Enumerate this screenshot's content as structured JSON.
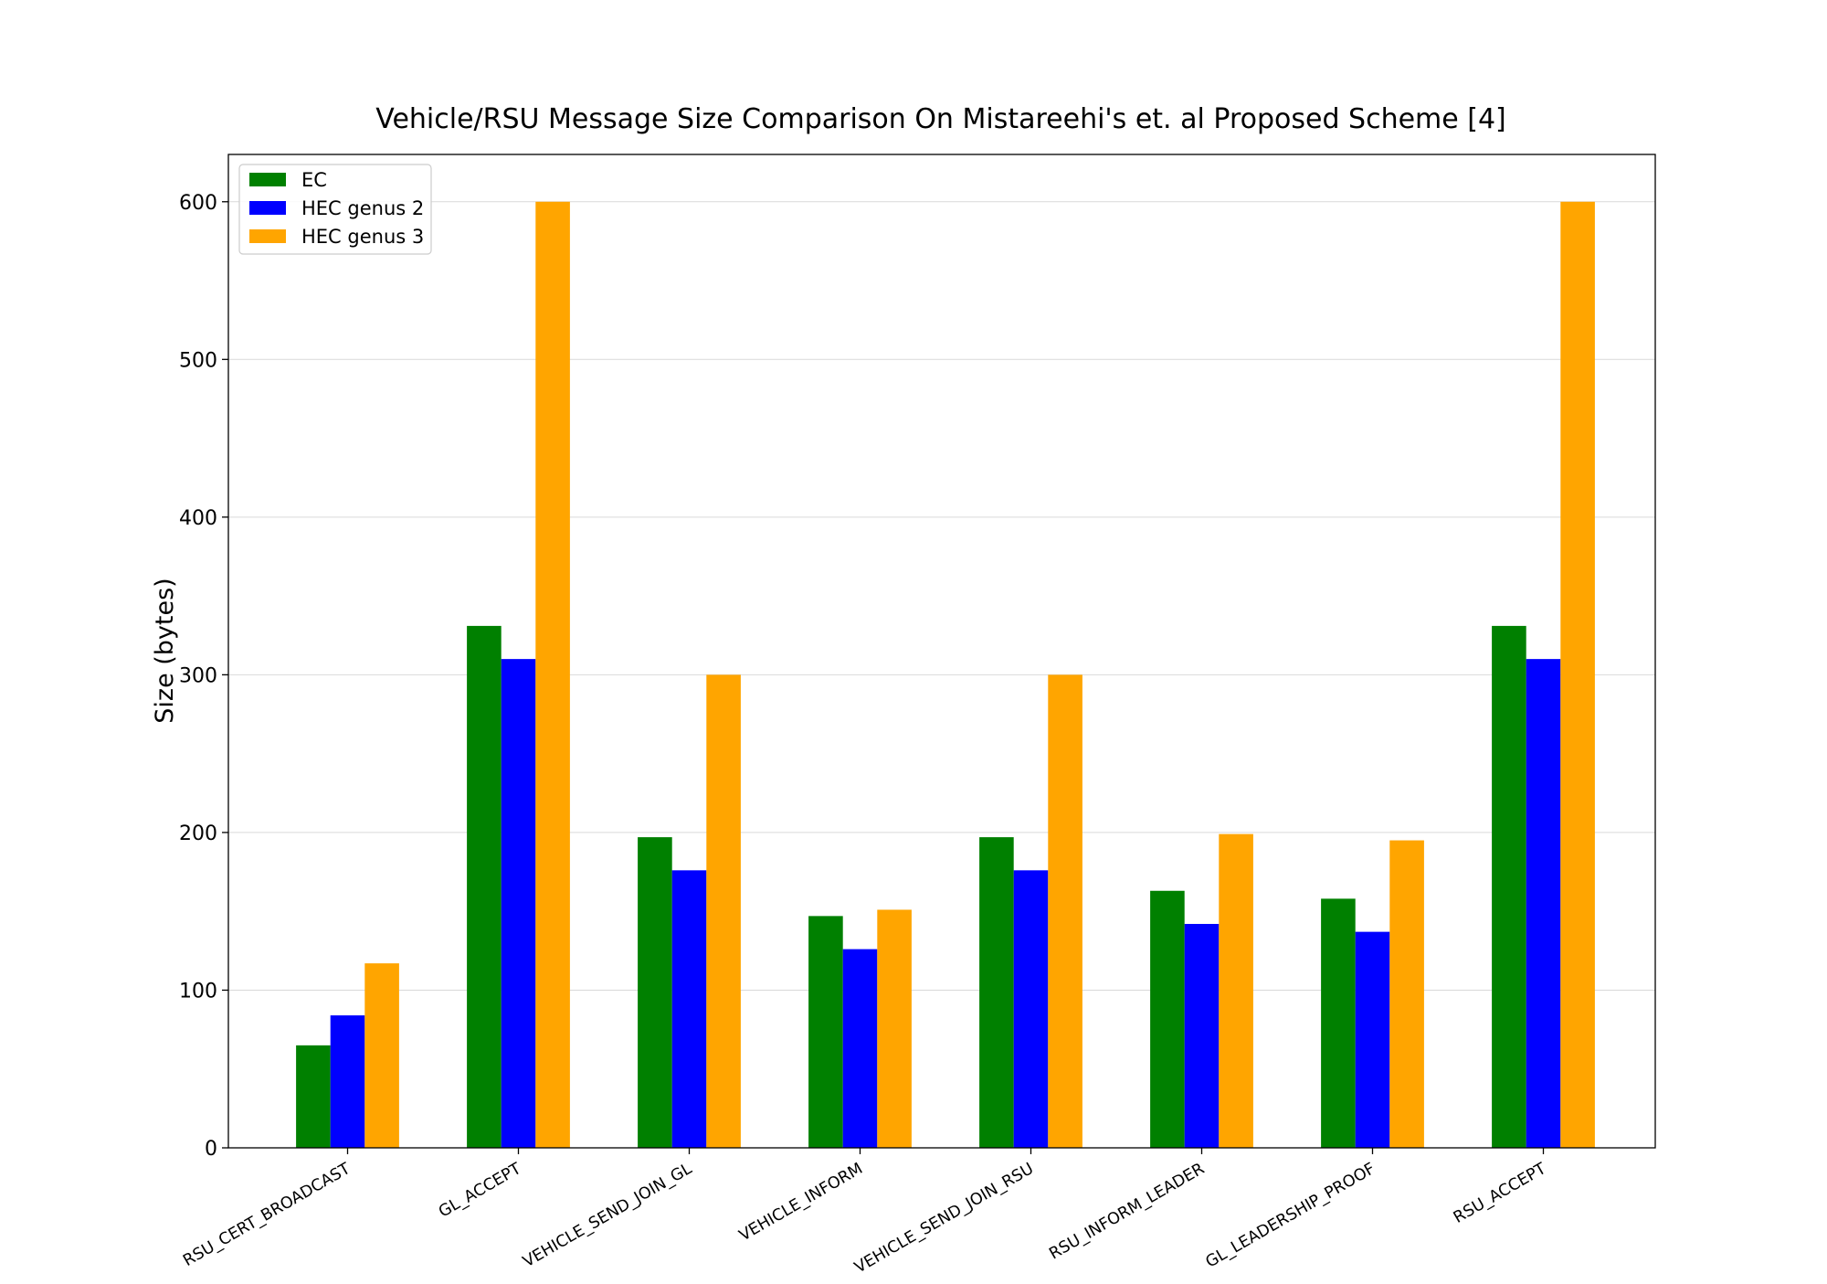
{
  "chart_data": {
    "type": "bar",
    "title": "Vehicle/RSU Message Size Comparison On Mistareehi's et. al Proposed Scheme [4]",
    "xlabel": "",
    "ylabel": "Size (bytes)",
    "ylim": [
      0,
      630
    ],
    "yticks": [
      "0",
      "100",
      "200",
      "300",
      "400",
      "500",
      "600"
    ],
    "grid": "horizontal",
    "legend_position": "top-left",
    "categories": [
      "RSU_CERT_BROADCAST",
      "GL_ACCEPT",
      "VEHICLE_SEND_JOIN_GL",
      "VEHICLE_INFORM",
      "VEHICLE_SEND_JOIN_RSU",
      "RSU_INFORM_LEADER",
      "GL_LEADERSHIP_PROOF",
      "RSU_ACCEPT"
    ],
    "series": [
      {
        "name": "EC",
        "color": "#008000",
        "values": [
          65,
          331,
          197,
          147,
          197,
          163,
          158,
          331
        ]
      },
      {
        "name": "HEC genus 2",
        "color": "#0000ff",
        "values": [
          84,
          310,
          176,
          126,
          176,
          142,
          137,
          310
        ]
      },
      {
        "name": "HEC genus 3",
        "color": "#ffa500",
        "values": [
          117,
          600,
          300,
          151,
          300,
          199,
          195,
          600
        ]
      }
    ]
  }
}
